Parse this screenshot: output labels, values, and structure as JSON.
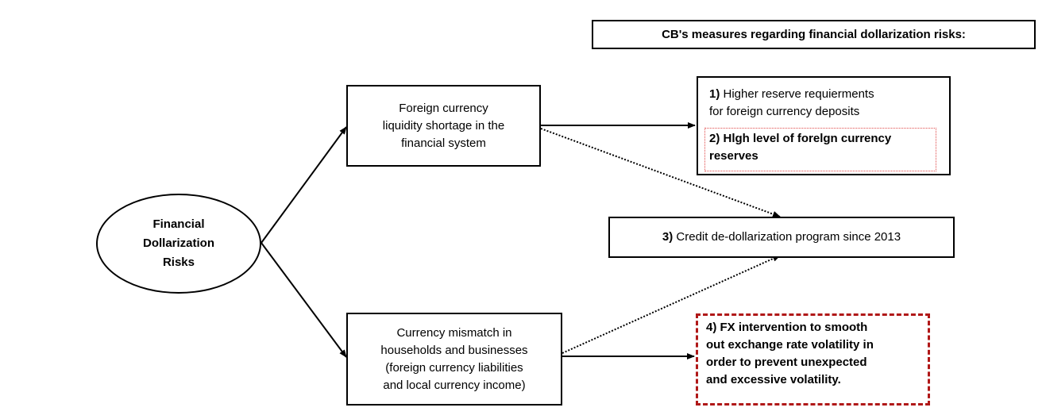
{
  "header": {
    "title": "CB's measures regarding financial dollarization risks:"
  },
  "root": {
    "lines": [
      "Financial",
      "Dollarization",
      "Risks"
    ]
  },
  "causes": {
    "fx_liquidity": [
      "Foreign currency",
      "liquidity shortage in the",
      "financial system"
    ],
    "mismatch": [
      "Currency mismatch in",
      "households and businesses",
      "(foreign currency liabilities",
      "and local currency income)"
    ]
  },
  "measures": {
    "m1": {
      "number": "1)",
      "lines": [
        "Higher reserve requierments",
        "for foreign currency deposits"
      ]
    },
    "m2": {
      "number": "2)",
      "lines": [
        "Hlgh level of forelgn currency",
        "reserves"
      ]
    },
    "m3": {
      "number": "3)",
      "text": "Credit de-dollarization program since 2013"
    },
    "m4": {
      "lines": [
        "4) FX intervention to smooth",
        "out exchange rate volatility in",
        "order to prevent unexpected",
        "and excessive volatility."
      ]
    }
  },
  "colors": {
    "m2_dotted_border": "#e04a4a",
    "m4_dashed_border": "#b01818",
    "lines": "#000000"
  }
}
